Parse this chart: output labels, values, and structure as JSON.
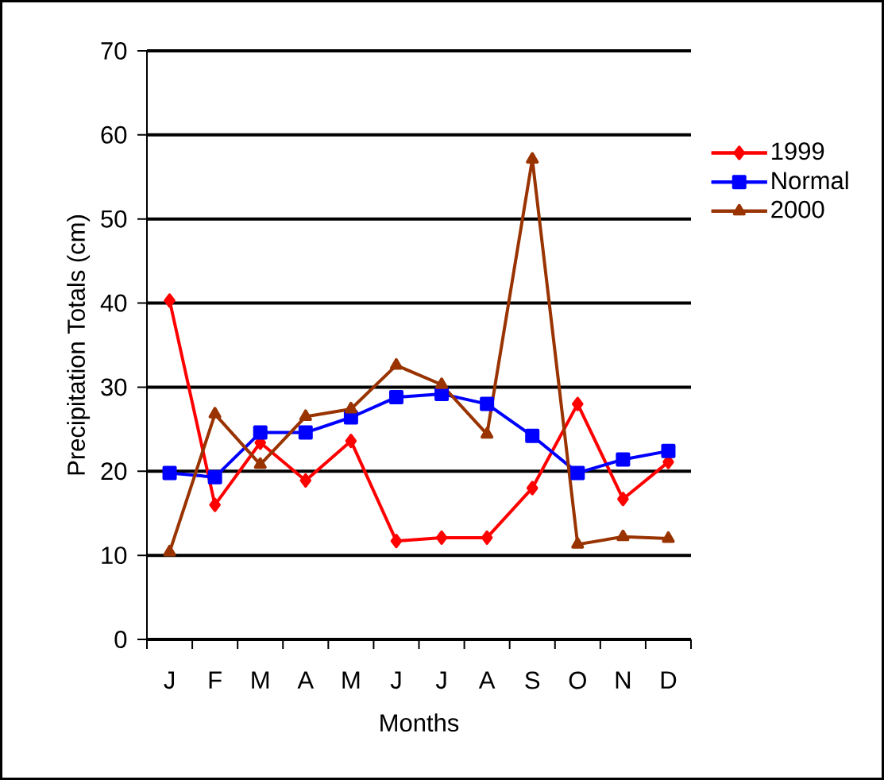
{
  "chart_data": {
    "type": "line",
    "xlabel": "Months",
    "ylabel": "Precipitation Totals (cm)",
    "categories": [
      "J",
      "F",
      "M",
      "A",
      "M",
      "J",
      "J",
      "A",
      "S",
      "O",
      "N",
      "D"
    ],
    "series": [
      {
        "name": "1999",
        "color": "#ff0000",
        "marker": "diamond",
        "values": [
          40.3,
          16.0,
          23.4,
          18.9,
          23.6,
          11.7,
          12.1,
          12.1,
          18.0,
          28.0,
          16.7,
          21.1
        ]
      },
      {
        "name": "Normal",
        "color": "#0000ff",
        "marker": "square",
        "values": [
          19.8,
          19.3,
          24.6,
          24.6,
          26.4,
          28.8,
          29.2,
          28.0,
          24.2,
          19.8,
          21.4,
          22.4
        ]
      },
      {
        "name": "2000",
        "color": "#993300",
        "marker": "triangle",
        "values": [
          10.4,
          26.8,
          20.8,
          26.5,
          27.4,
          32.6,
          30.3,
          24.4,
          57.1,
          11.3,
          12.2,
          12.0
        ]
      }
    ],
    "ylim": [
      0,
      70
    ],
    "yticks": [
      0,
      10,
      20,
      30,
      40,
      50,
      60,
      70
    ],
    "grid": "y",
    "legend": "right",
    "line_style": "solid"
  }
}
